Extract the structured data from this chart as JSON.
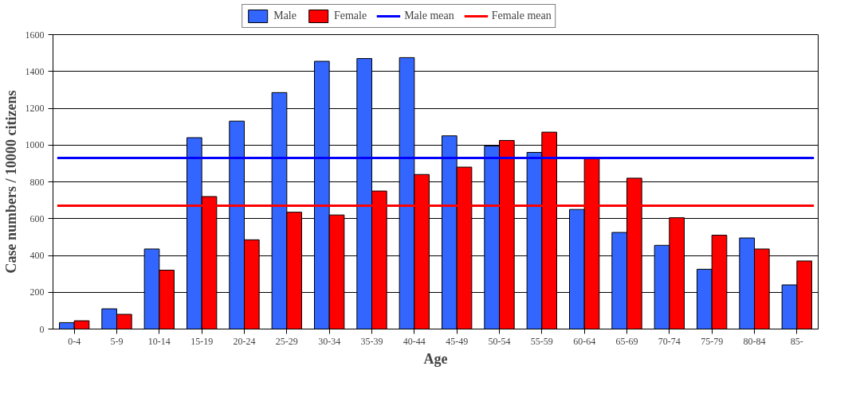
{
  "chart_data": {
    "type": "bar",
    "xlabel": "Age",
    "ylabel": "Case numbers / 10000 citizens",
    "categories": [
      "0-4",
      "5-9",
      "10-14",
      "15-19",
      "20-24",
      "25-29",
      "30-34",
      "35-39",
      "40-44",
      "45-49",
      "50-54",
      "55-59",
      "60-64",
      "65-69",
      "70-74",
      "75-79",
      "80-84",
      "85-"
    ],
    "series": [
      {
        "name": "Male",
        "color": "#3366ff",
        "values": [
          35,
          110,
          435,
          1040,
          1130,
          1285,
          1455,
          1470,
          1475,
          1050,
          995,
          960,
          650,
          525,
          455,
          325,
          495,
          240
        ]
      },
      {
        "name": "Female",
        "color": "#ff0000",
        "values": [
          45,
          80,
          320,
          720,
          485,
          635,
          620,
          750,
          840,
          880,
          1025,
          1070,
          925,
          820,
          605,
          510,
          435,
          370
        ]
      }
    ],
    "ref_lines": [
      {
        "axis": "y",
        "value": 930,
        "label": "Male mean",
        "color": "#0000ff"
      },
      {
        "axis": "y",
        "value": 670,
        "label": "Female mean",
        "color": "#ff0000"
      }
    ],
    "ylim": [
      0,
      1600
    ],
    "yticks": [
      0,
      200,
      400,
      600,
      800,
      1000,
      1200,
      1400,
      1600
    ],
    "grid": "y",
    "legend": "top"
  }
}
